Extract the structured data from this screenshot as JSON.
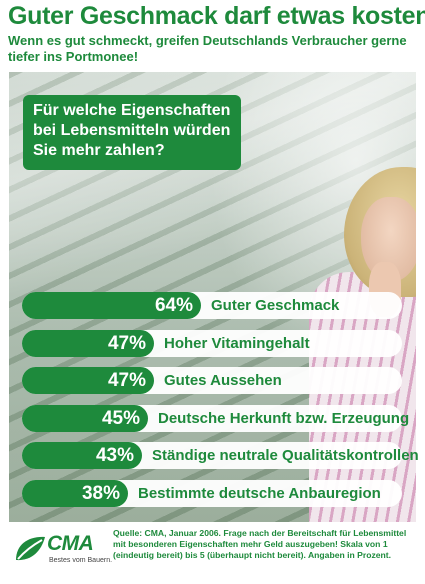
{
  "header": {
    "title": "Guter Geschmack darf etwas kosten!",
    "subtitle": "Wenn es gut schmeckt, greifen Deutschlands Verbraucher gerne tiefer ins Portmonee!"
  },
  "question": {
    "text": "Für welche Eigenschaften bei Lebensmitteln würden Sie mehr zahlen?"
  },
  "chart_data": {
    "type": "bar",
    "orientation": "horizontal",
    "categories": [
      "Guter Geschmack",
      "Hoher Vitamingehalt",
      "Gutes Aussehen",
      "Deutsche Herkunft bzw. Erzeugung",
      "Ständige neutrale Qualitätskontrollen",
      "Bestimmte deutsche Anbauregion"
    ],
    "values": [
      64,
      47,
      47,
      45,
      43,
      38
    ],
    "value_labels": [
      "64%",
      "47%",
      "47%",
      "45%",
      "43%",
      "38%"
    ],
    "unit": "%",
    "title": "Guter Geschmack darf etwas kosten!",
    "xlabel": "",
    "ylabel": "",
    "xlim": [
      0,
      100
    ],
    "colors": {
      "bar": "#1e8a3c",
      "track": "#ffffff"
    }
  },
  "footer": {
    "logo_text": "CMA",
    "logo_tagline": "Bestes vom Bauern.",
    "source": "Quelle: CMA, Januar 2006. Frage nach der Bereitschaft für Lebensmittel mit besonderen Eigenschaften mehr Geld auszugeben! Skala von 1 (eindeutig bereit) bis 5 (überhaupt nicht bereit). Angaben in Prozent."
  },
  "colors": {
    "accent": "#1e8a3c"
  }
}
